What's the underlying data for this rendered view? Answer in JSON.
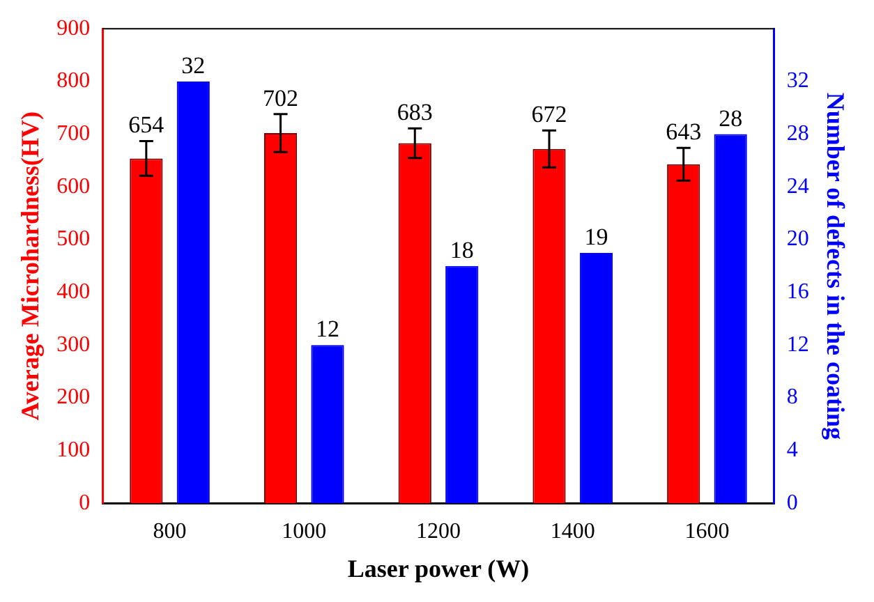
{
  "chart_data": {
    "type": "bar",
    "xlabel": "Laser power (W)",
    "ylabel": "Average Microhardness(HV)",
    "y2label": "Number of defects in the coating",
    "categories": [
      "800",
      "1000",
      "1200",
      "1400",
      "1600"
    ],
    "series": [
      {
        "color": "#ff0000",
        "values": [
          654,
          702,
          683,
          672,
          643
        ],
        "errors": [
          33,
          36,
          28,
          35,
          31
        ]
      },
      {
        "color": "#0000ff",
        "axis": "y2",
        "values": [
          32,
          12,
          18,
          19,
          28
        ]
      }
    ],
    "ylim": [
      0,
      900
    ],
    "yticks": [
      0,
      100,
      200,
      300,
      400,
      500,
      600,
      700,
      800,
      900
    ],
    "y2lim": [
      0,
      36
    ],
    "y2ticks": [
      0,
      4,
      8,
      12,
      16,
      20,
      24,
      28,
      32
    ],
    "data_labels": true,
    "grid": false,
    "legend": false
  }
}
